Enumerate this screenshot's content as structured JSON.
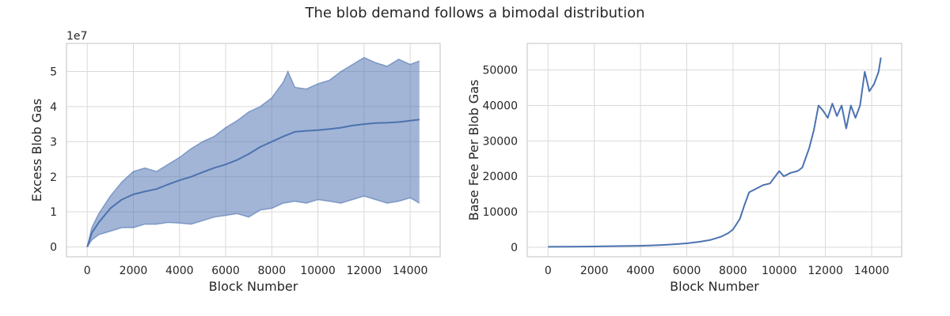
{
  "figure": {
    "title": "The blob demand follows a bimodal distribution"
  },
  "chart_data": [
    {
      "type": "line",
      "xlabel": "Block Number",
      "ylabel": "Excess Blob Gas",
      "offset_text": "1e7",
      "xlim": [
        -900,
        15300
      ],
      "ylim": [
        -2800000,
        58000000
      ],
      "xticks": [
        0,
        2000,
        4000,
        6000,
        8000,
        10000,
        12000,
        14000
      ],
      "yticks": [
        0,
        10000000,
        20000000,
        30000000,
        40000000,
        50000000
      ],
      "ytick_labels": [
        "0",
        "1",
        "2",
        "3",
        "4",
        "5"
      ],
      "grid": true,
      "colors": {
        "line": "#4c72b0",
        "band": "#4c72b0"
      },
      "series": [
        {
          "role": "mean",
          "x": [
            0,
            200,
            500,
            1000,
            1500,
            2000,
            2500,
            3000,
            3500,
            4000,
            4500,
            5000,
            5500,
            6000,
            6500,
            7000,
            7500,
            8000,
            8500,
            9000,
            9500,
            10000,
            10500,
            11000,
            11500,
            12000,
            12500,
            13000,
            13500,
            14000,
            14400
          ],
          "values": [
            0,
            4000000,
            7000000,
            11000000,
            13500000,
            15000000,
            15800000,
            16500000,
            17800000,
            19000000,
            20000000,
            21300000,
            22500000,
            23500000,
            24800000,
            26500000,
            28500000,
            30000000,
            31500000,
            32800000,
            33100000,
            33300000,
            33600000,
            34000000,
            34600000,
            35000000,
            35300000,
            35400000,
            35600000,
            36000000,
            36300000
          ]
        },
        {
          "role": "upper",
          "x": [
            0,
            200,
            500,
            1000,
            1500,
            2000,
            2500,
            3000,
            3500,
            4000,
            4500,
            5000,
            5500,
            6000,
            6500,
            7000,
            7500,
            8000,
            8500,
            8700,
            9000,
            9500,
            10000,
            10500,
            11000,
            11500,
            12000,
            12500,
            13000,
            13500,
            14000,
            14400
          ],
          "values": [
            0,
            5500000,
            9500000,
            14500000,
            18500000,
            21500000,
            22500000,
            21500000,
            23500000,
            25500000,
            28000000,
            30000000,
            31500000,
            34000000,
            36000000,
            38500000,
            40000000,
            42500000,
            47000000,
            50000000,
            45500000,
            45000000,
            46500000,
            47500000,
            50000000,
            52000000,
            54000000,
            52500000,
            51500000,
            53500000,
            52000000,
            53000000
          ]
        },
        {
          "role": "lower",
          "x": [
            0,
            200,
            500,
            1000,
            1500,
            2000,
            2500,
            3000,
            3500,
            4000,
            4500,
            5000,
            5500,
            6000,
            6500,
            7000,
            7500,
            8000,
            8500,
            9000,
            9500,
            10000,
            10500,
            11000,
            11500,
            12000,
            12500,
            13000,
            13500,
            14000,
            14400
          ],
          "values": [
            0,
            2000000,
            3500000,
            4500000,
            5500000,
            5500000,
            6500000,
            6500000,
            7000000,
            6800000,
            6500000,
            7500000,
            8500000,
            9000000,
            9500000,
            8500000,
            10500000,
            11000000,
            12500000,
            13000000,
            12500000,
            13500000,
            13000000,
            12500000,
            13500000,
            14500000,
            13500000,
            12500000,
            13000000,
            14000000,
            12500000
          ]
        }
      ]
    },
    {
      "type": "line",
      "xlabel": "Block Number",
      "ylabel": "Base Fee Per Blob Gas",
      "xlim": [
        -900,
        15300
      ],
      "ylim": [
        -2700,
        57500
      ],
      "xticks": [
        0,
        2000,
        4000,
        6000,
        8000,
        10000,
        12000,
        14000
      ],
      "yticks": [
        0,
        10000,
        20000,
        30000,
        40000,
        50000
      ],
      "grid": true,
      "colors": {
        "line": "#4c72b0"
      },
      "series": [
        {
          "x": [
            0,
            1000,
            2000,
            3000,
            4000,
            4500,
            5000,
            5500,
            6000,
            6500,
            7000,
            7500,
            7800,
            8000,
            8300,
            8500,
            8700,
            9000,
            9300,
            9600,
            10000,
            10200,
            10500,
            10800,
            11000,
            11300,
            11500,
            11700,
            11900,
            12100,
            12300,
            12500,
            12700,
            12900,
            13100,
            13300,
            13500,
            13700,
            13900,
            14100,
            14300,
            14400
          ],
          "values": [
            100,
            150,
            200,
            300,
            400,
            500,
            650,
            850,
            1100,
            1500,
            2000,
            3000,
            4000,
            5000,
            8000,
            12000,
            15500,
            16500,
            17500,
            18000,
            21500,
            20000,
            21000,
            21500,
            22500,
            28000,
            33000,
            40000,
            38500,
            36500,
            40500,
            37000,
            40000,
            33500,
            40000,
            36500,
            40000,
            49500,
            44000,
            46000,
            49500,
            53500
          ]
        }
      ]
    }
  ]
}
